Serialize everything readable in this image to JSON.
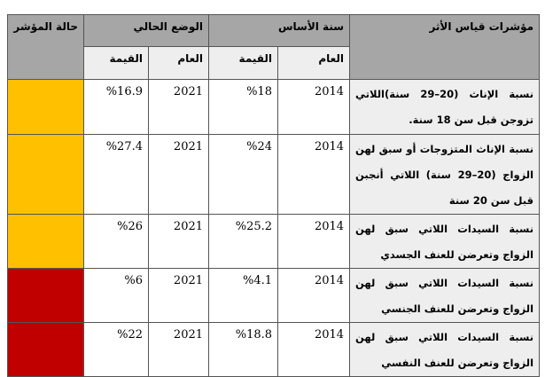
{
  "headers": {
    "indicator": "مؤشرات قياس الأثر",
    "base": "سنة الأساس",
    "current": "الوضع الحالي",
    "status": "حالة المؤشر",
    "year": "العام",
    "value": "القيمة"
  },
  "rows": [
    {
      "indicator": "نسبة الإناث (20–29 سنة)اللاتي تزوجن قبل سن 18 سنة.",
      "base_year": "2014",
      "base_value": "%18",
      "cur_year": "2021",
      "cur_value": "%16.9",
      "status_color": "#ffc000"
    },
    {
      "indicator": "نسبة الإناث المتزوجات أو سبق لهن الزواج (20–29 سنة) اللاتي أنجبن قبل سن 20 سنة",
      "base_year": "2014",
      "base_value": "%24",
      "cur_year": "2021",
      "cur_value": "%27.4",
      "status_color": "#ffc000"
    },
    {
      "indicator": "نسبة السيدات اللاتي سبق لهن الزواج وتعرضن للعنف الجسدي",
      "base_year": "2014",
      "base_value": "%25.2",
      "cur_year": "2021",
      "cur_value": "%26",
      "status_color": "#ffc000"
    },
    {
      "indicator": "نسبة السيدات اللاتي سبق لهن الزواج وتعرضن للعنف الجنسي",
      "base_year": "2014",
      "base_value": "%4.1",
      "cur_year": "2021",
      "cur_value": "%6",
      "status_color": "#c00000"
    },
    {
      "indicator": "نسبة السيدات اللاتي سبق لهن الزواج وتعرضن للعنف النفسي",
      "base_year": "2014",
      "base_value": "%18.8",
      "cur_year": "2021",
      "cur_value": "%22",
      "status_color": "#c00000"
    }
  ]
}
